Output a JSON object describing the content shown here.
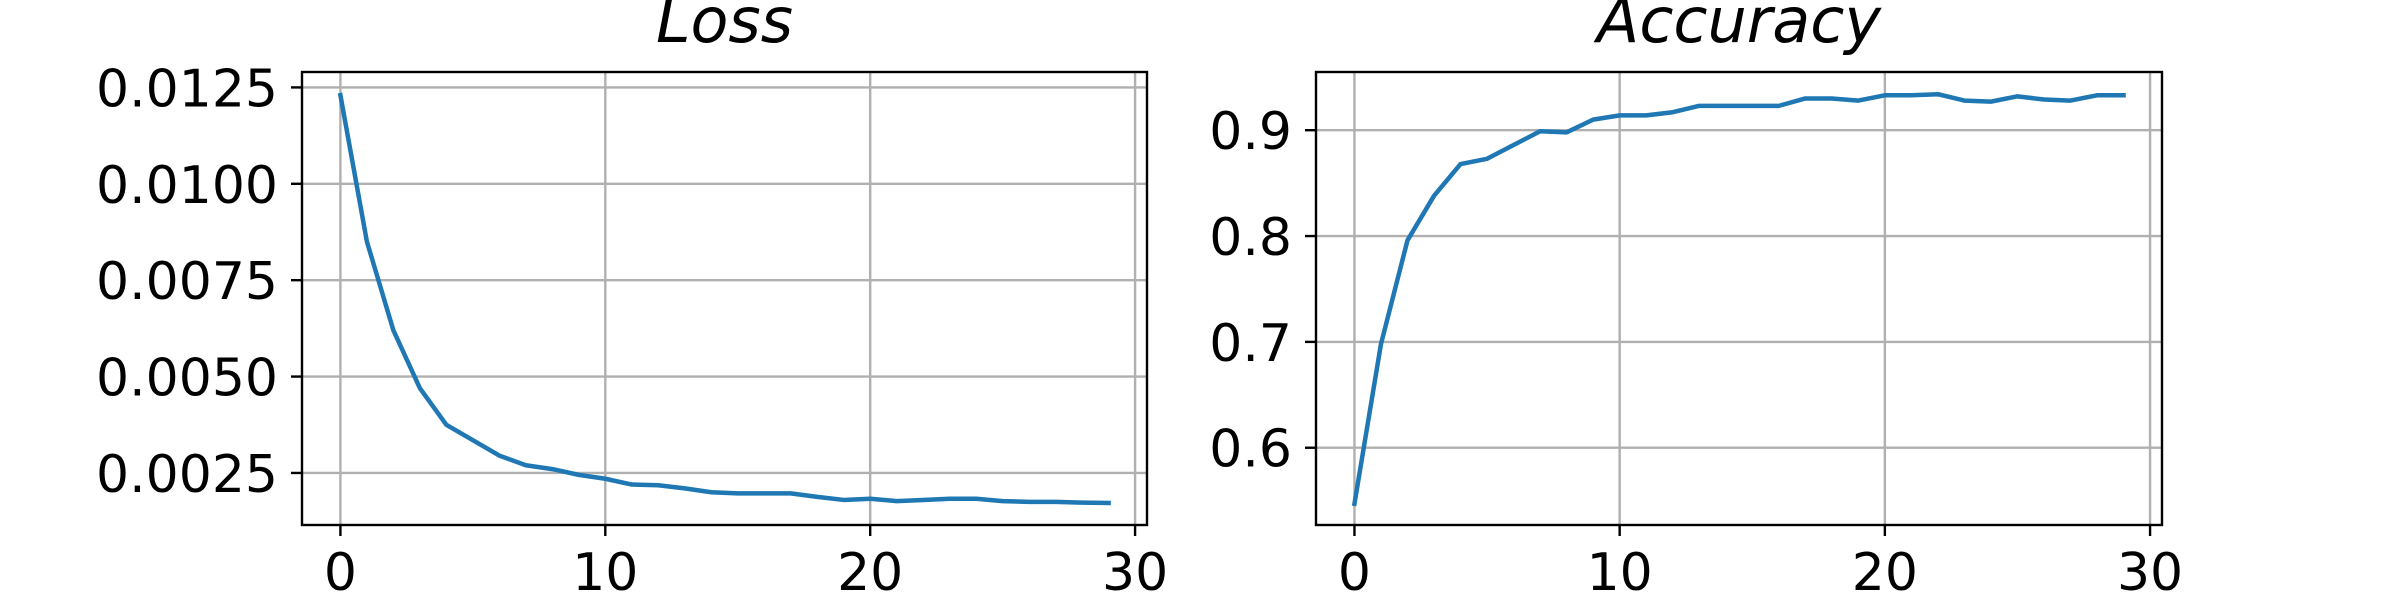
{
  "chart_data": [
    {
      "type": "line",
      "title": "Loss",
      "xlabel": "",
      "ylabel": "",
      "xlim": [
        -1.45,
        30.45
      ],
      "ylim": [
        0.00115,
        0.0129
      ],
      "xticks": [
        0,
        10,
        20,
        30
      ],
      "xtick_labels": [
        "0",
        "10",
        "20",
        "30"
      ],
      "yticks": [
        0.0025,
        0.005,
        0.0075,
        0.01,
        0.0125
      ],
      "ytick_labels": [
        "0.0025",
        "0.0050",
        "0.0075",
        "0.0100",
        "0.0125"
      ],
      "grid": true,
      "line_color": "#1f77b4",
      "x": [
        0,
        1,
        2,
        3,
        4,
        5,
        6,
        7,
        8,
        9,
        10,
        11,
        12,
        13,
        14,
        15,
        16,
        17,
        18,
        19,
        20,
        21,
        22,
        23,
        24,
        25,
        26,
        27,
        28,
        29
      ],
      "y": [
        0.0123,
        0.0085,
        0.0062,
        0.0047,
        0.00375,
        0.00335,
        0.00295,
        0.0027,
        0.0026,
        0.00245,
        0.00235,
        0.0022,
        0.00218,
        0.0021,
        0.002,
        0.00197,
        0.00197,
        0.00197,
        0.00188,
        0.0018,
        0.00183,
        0.00177,
        0.0018,
        0.00183,
        0.00183,
        0.00177,
        0.00175,
        0.00175,
        0.00173,
        0.00172
      ]
    },
    {
      "type": "line",
      "title": "Accuracy",
      "xlabel": "",
      "ylabel": "",
      "xlim": [
        -1.45,
        30.45
      ],
      "ylim": [
        0.527,
        0.955
      ],
      "xticks": [
        0,
        10,
        20,
        30
      ],
      "xtick_labels": [
        "0",
        "10",
        "20",
        "30"
      ],
      "yticks": [
        0.6,
        0.7,
        0.8,
        0.9
      ],
      "ytick_labels": [
        "0.6",
        "0.7",
        "0.8",
        "0.9"
      ],
      "grid": true,
      "line_color": "#1f77b4",
      "x": [
        0,
        1,
        2,
        3,
        4,
        5,
        6,
        7,
        8,
        9,
        10,
        11,
        12,
        13,
        14,
        15,
        16,
        17,
        18,
        19,
        20,
        21,
        22,
        23,
        24,
        25,
        26,
        27,
        28,
        29
      ],
      "y": [
        0.547,
        0.698,
        0.796,
        0.838,
        0.868,
        0.873,
        0.886,
        0.899,
        0.898,
        0.91,
        0.914,
        0.914,
        0.917,
        0.923,
        0.923,
        0.923,
        0.923,
        0.93,
        0.93,
        0.928,
        0.933,
        0.933,
        0.934,
        0.928,
        0.927,
        0.932,
        0.929,
        0.928,
        0.933,
        0.933
      ]
    }
  ]
}
